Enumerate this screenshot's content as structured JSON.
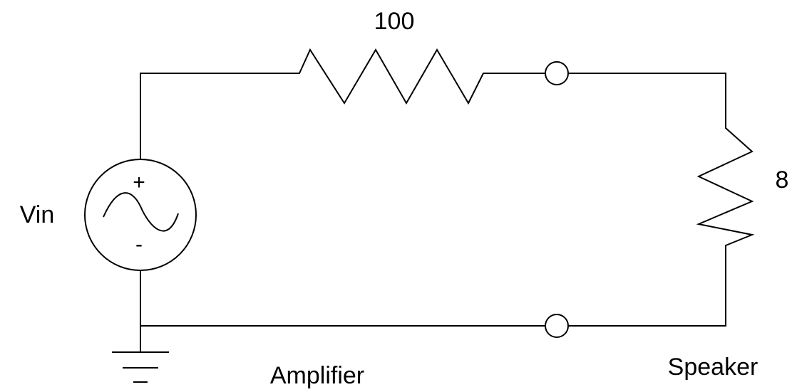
{
  "resistor_top": {
    "label": "100"
  },
  "resistor_right": {
    "label": "8"
  },
  "source": {
    "label": "Vin",
    "plus": "+",
    "minus": "-"
  },
  "labels": {
    "amplifier": "Amplifier",
    "speaker": "Speaker"
  }
}
